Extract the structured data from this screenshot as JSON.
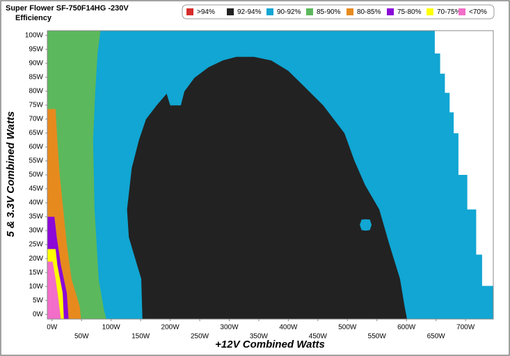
{
  "chart_data": {
    "type": "area",
    "title": "Super Flower SF-750F14HG -230V",
    "subtitle": "Efficiency",
    "x_label": "+12V Combined Watts",
    "y_label": "5 & 3.3V Combined Watts",
    "xlim": [
      -8,
      747
    ],
    "ylim": [
      -1.7,
      101.7
    ],
    "xticks": [
      {
        "value": 0,
        "label": "0W"
      },
      {
        "value": 50,
        "label": "50W"
      },
      {
        "value": 100,
        "label": "100W"
      },
      {
        "value": 150,
        "label": "150W"
      },
      {
        "value": 200,
        "label": "200W"
      },
      {
        "value": 250,
        "label": "250W"
      },
      {
        "value": 300,
        "label": "300W"
      },
      {
        "value": 350,
        "label": "350W"
      },
      {
        "value": 400,
        "label": "400W"
      },
      {
        "value": 450,
        "label": "450W"
      },
      {
        "value": 500,
        "label": "500W"
      },
      {
        "value": 550,
        "label": "550W"
      },
      {
        "value": 600,
        "label": "600W"
      },
      {
        "value": 650,
        "label": "650W"
      },
      {
        "value": 700,
        "label": "700W"
      }
    ],
    "yticks": [
      {
        "value": 0,
        "label": "0W"
      },
      {
        "value": 5,
        "label": "5W"
      },
      {
        "value": 10,
        "label": "10W"
      },
      {
        "value": 15,
        "label": "15W"
      },
      {
        "value": 20,
        "label": "20W"
      },
      {
        "value": 25,
        "label": "25W"
      },
      {
        "value": 30,
        "label": "30W"
      },
      {
        "value": 35,
        "label": "35W"
      },
      {
        "value": 40,
        "label": "40W"
      },
      {
        "value": 45,
        "label": "45W"
      },
      {
        "value": 50,
        "label": "50W"
      },
      {
        "value": 55,
        "label": "55W"
      },
      {
        "value": 60,
        "label": "60W"
      },
      {
        "value": 65,
        "label": "65W"
      },
      {
        "value": 70,
        "label": "70W"
      },
      {
        "value": 75,
        "label": "75W"
      },
      {
        "value": 80,
        "label": "80W"
      },
      {
        "value": 85,
        "label": "85W"
      },
      {
        "value": 90,
        "label": "90W"
      },
      {
        "value": 95,
        "label": "95W"
      },
      {
        "value": 100,
        "label": "100W"
      }
    ],
    "series": [
      {
        "name": ">94%",
        "color": "#d62c2c",
        "x": [],
        "y": []
      },
      {
        "name": "90-92%",
        "color": "#11a6d3",
        "x": [
          -8,
          747,
          747,
          728,
          728,
          718,
          718,
          703,
          703,
          688,
          688,
          680,
          680,
          673,
          673,
          665,
          665,
          657,
          657,
          648,
          648,
          -8
        ],
        "y": [
          -1.7,
          -1.7,
          10.2,
          10.2,
          21.4,
          21.4,
          37.6,
          37.6,
          50,
          50,
          64.9,
          64.9,
          72.4,
          72.4,
          79.4,
          79.4,
          86.3,
          86.3,
          93.5,
          93.5,
          101.7,
          101.7
        ]
      },
      {
        "name": "92-94%",
        "color": "#222222",
        "x": [
          153,
          151,
          130,
          127,
          135,
          147,
          159,
          177,
          194,
          200,
          218,
          224,
          241,
          265,
          289,
          312,
          342,
          371,
          400,
          424,
          459,
          495,
          512,
          530,
          554,
          571,
          589,
          597,
          601,
          null,
          541,
          538,
          531,
          524,
          521,
          524,
          531,
          538
        ],
        "y": [
          -1.7,
          12.7,
          27.6,
          37.6,
          52.5,
          62.4,
          69.9,
          74.9,
          79.1,
          74.9,
          74.9,
          79.9,
          84.8,
          88.6,
          91,
          92.3,
          92.3,
          91,
          87.3,
          82.3,
          74.9,
          64.9,
          55,
          46.3,
          37.6,
          25.1,
          12.7,
          2.7,
          -1.7,
          null,
          32.1,
          34,
          34.1,
          34,
          32.1,
          30.2,
          30,
          30.2
        ]
      },
      {
        "name": "85-90%",
        "color": "#5cb85c",
        "x": [
          -8,
          92,
          88,
          79,
          72,
          69.5,
          73,
          77,
          82,
          -8
        ],
        "y": [
          -1.7,
          -1.7,
          1.5,
          12.4,
          37.6,
          62.4,
          79.4,
          93.5,
          101.7,
          101.7
        ]
      },
      {
        "name": "80-85%",
        "color": "#e78a1e",
        "x": [
          -8,
          49,
          47,
          33,
          25,
          19,
          13,
          9,
          6,
          -8
        ],
        "y": [
          -1.7,
          -1.7,
          2.7,
          12.7,
          25.1,
          37.6,
          50,
          62.4,
          73.6,
          73.6
        ]
      },
      {
        "name": "75-80%",
        "color": "#8b08d8",
        "x": [
          -8,
          28,
          25,
          15,
          8,
          4,
          -8
        ],
        "y": [
          -1.7,
          -1.7,
          7.7,
          17.7,
          27.6,
          35,
          35
        ]
      },
      {
        "name": "70-75%",
        "color": "#ffff00",
        "x": [
          -8,
          20,
          18,
          9,
          6,
          -8
        ],
        "y": [
          -1.7,
          -1.7,
          7.7,
          17.7,
          23.4,
          23.4
        ]
      },
      {
        "name": "<70%",
        "color": "#f26ec8",
        "x": [
          -8,
          15,
          11,
          6,
          1,
          -8
        ],
        "y": [
          -1.7,
          -1.7,
          5.2,
          12.7,
          18.9,
          18.9
        ]
      }
    ]
  }
}
